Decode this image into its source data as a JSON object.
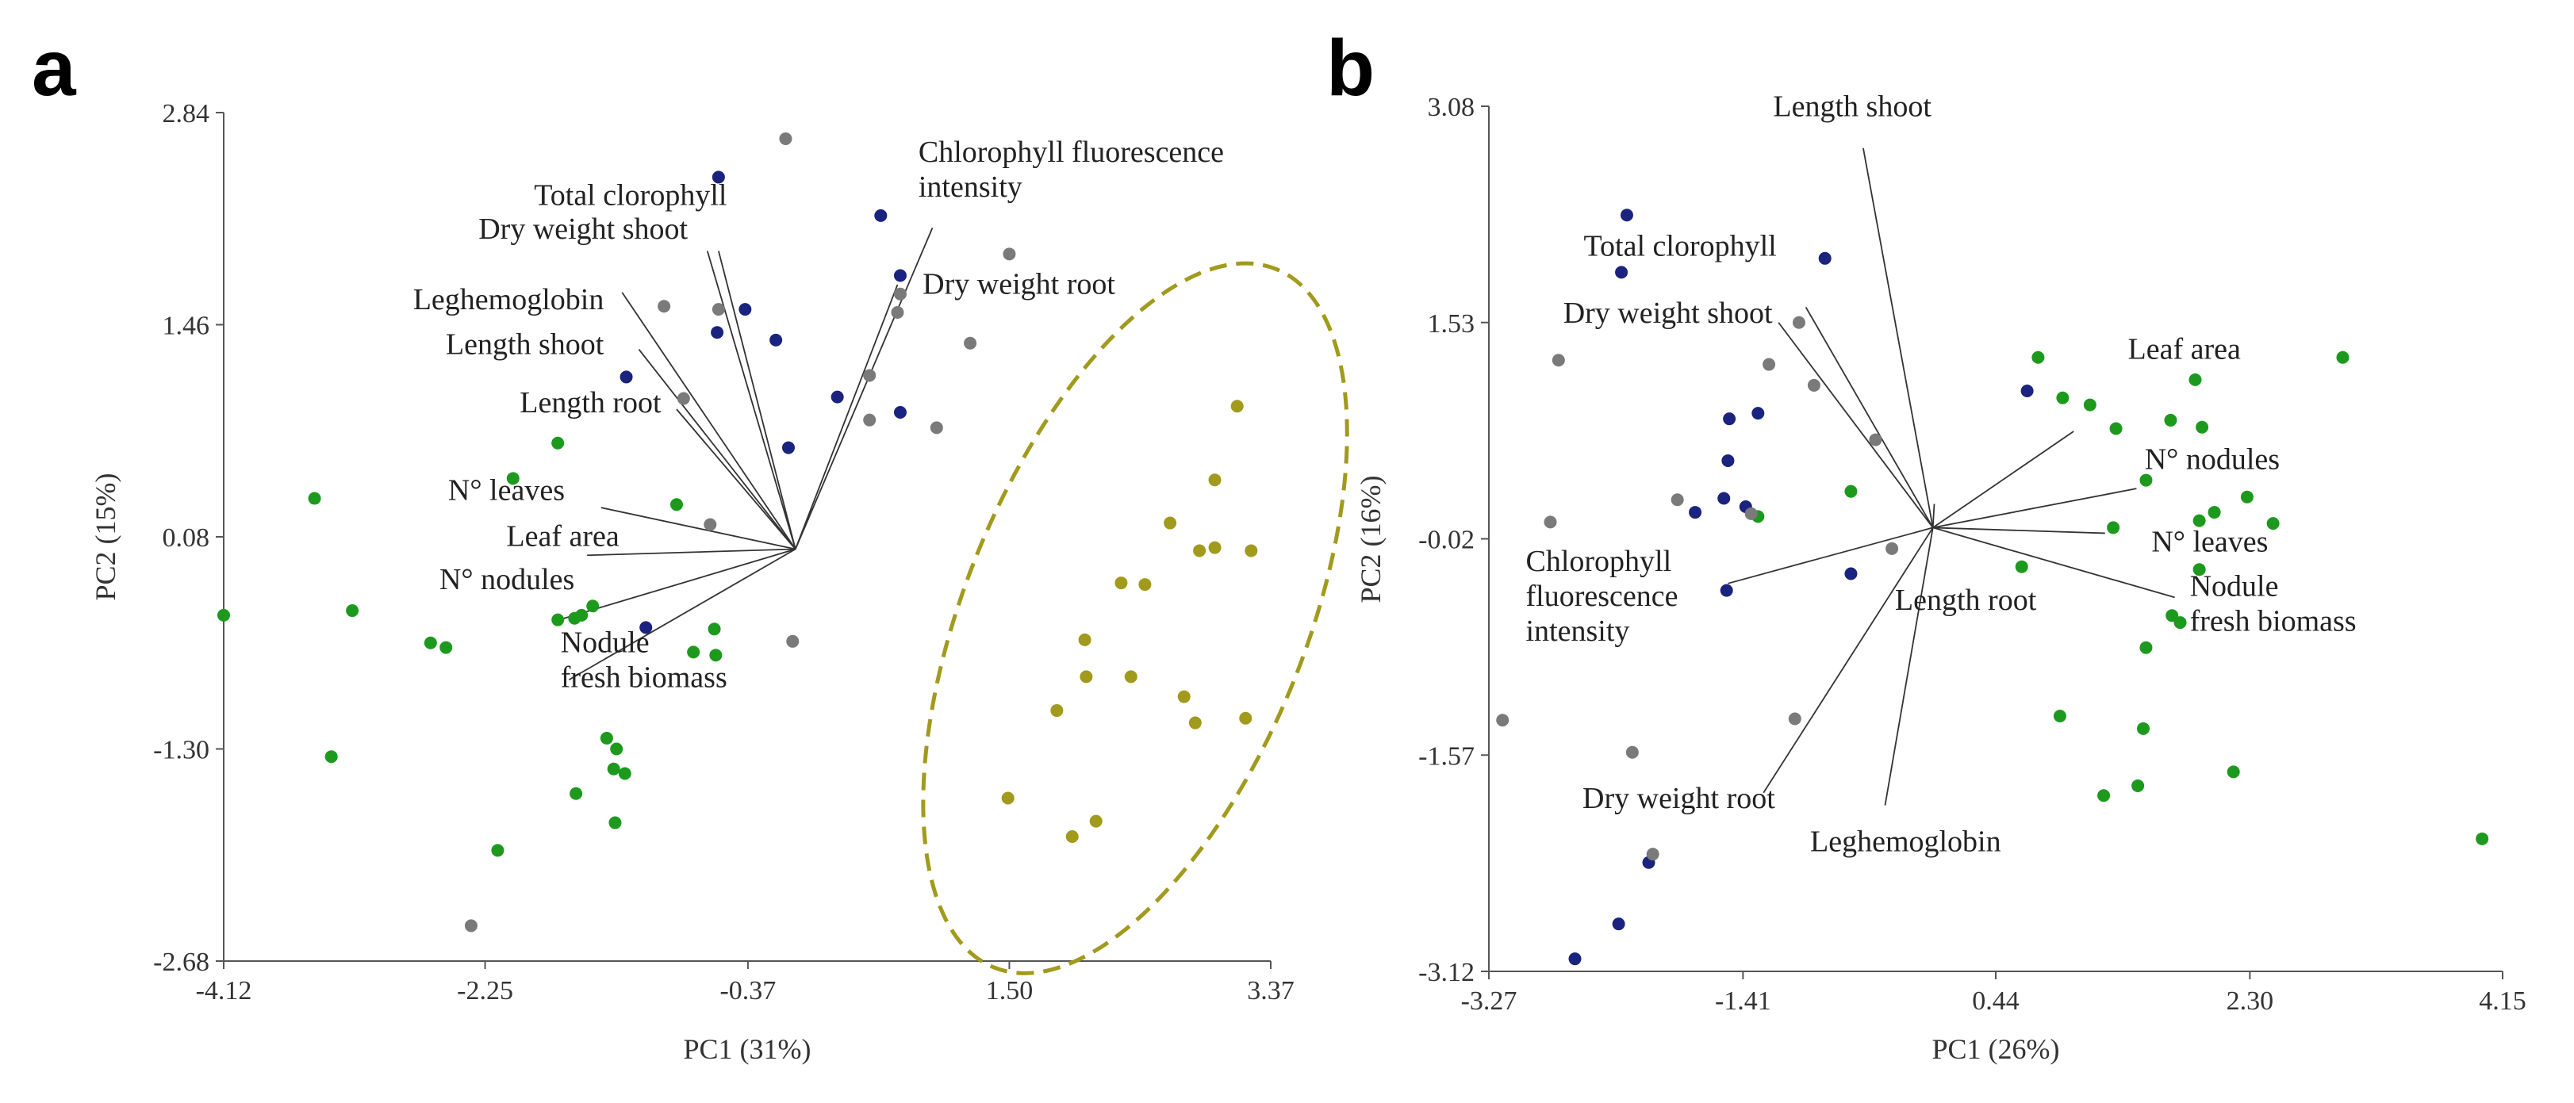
{
  "colors": {
    "green": "#1d9a1d",
    "navy": "#1a237e",
    "gray": "#7a7a7a",
    "olive": "#a19a1c",
    "axis": "#555555",
    "vector": "#333333"
  },
  "chart_data": [
    {
      "panel": "a",
      "type": "scatter",
      "subtype": "pca-biplot",
      "xlabel": "PC1 (31%)",
      "ylabel": "PC2 (15%)",
      "xlim": [
        -4.12,
        3.37
      ],
      "ylim": [
        -2.68,
        2.84
      ],
      "xticks": [
        {
          "value": -4.12,
          "label": "-4.12"
        },
        {
          "value": -2.25,
          "label": "-2.25"
        },
        {
          "value": -0.37,
          "label": "-0.37"
        },
        {
          "value": 1.5,
          "label": "1.50"
        },
        {
          "value": 3.37,
          "label": "3.37"
        }
      ],
      "yticks": [
        {
          "value": 2.84,
          "label": "2.84"
        },
        {
          "value": 1.46,
          "label": "1.46"
        },
        {
          "value": 0.08,
          "label": "0.08"
        },
        {
          "value": -1.3,
          "label": "-1.30"
        },
        {
          "value": -2.68,
          "label": "-2.68"
        }
      ],
      "origin": [
        -0.03,
        0.0
      ],
      "loadings": [
        {
          "label": "Chlorophyll fluorescence\nintensity",
          "end": [
            0.95,
            2.09
          ],
          "label_at": [
            0.85,
            2.52
          ],
          "anchor": "start"
        },
        {
          "label": "Dry weight root",
          "end": [
            0.7,
            1.72
          ],
          "label_at": [
            0.88,
            1.66
          ],
          "anchor": "start"
        },
        {
          "label": "Total clorophyll",
          "end": [
            -0.58,
            1.94
          ],
          "label_at": [
            -0.52,
            2.24
          ],
          "anchor": "end"
        },
        {
          "label": "Dry weight shoot",
          "end": [
            -0.66,
            1.94
          ],
          "label_at": [
            -0.8,
            2.02
          ],
          "anchor": "end"
        },
        {
          "label": "Leghemoglobin",
          "end": [
            -1.27,
            1.67
          ],
          "label_at": [
            -1.4,
            1.56
          ],
          "anchor": "end"
        },
        {
          "label": "Length shoot",
          "end": [
            -1.15,
            1.3
          ],
          "label_at": [
            -1.4,
            1.27
          ],
          "anchor": "end"
        },
        {
          "label": "Length root",
          "end": [
            -0.88,
            0.91
          ],
          "label_at": [
            -0.99,
            0.89
          ],
          "anchor": "end"
        },
        {
          "label": "N° leaves",
          "end": [
            -1.42,
            0.27
          ],
          "label_at": [
            -1.68,
            0.32
          ],
          "anchor": "end"
        },
        {
          "label": "Leaf area",
          "end": [
            -1.52,
            -0.04
          ],
          "label_at": [
            -1.29,
            0.02
          ],
          "anchor": "end"
        },
        {
          "label": "N° nodules",
          "end": [
            -1.72,
            -0.46
          ],
          "label_at": [
            -1.61,
            -0.26
          ],
          "anchor": "end"
        },
        {
          "label": "Nodule\nfresh biomass",
          "end": [
            -1.65,
            -0.85
          ],
          "label_at": [
            -1.71,
            -0.67
          ],
          "anchor": "start"
        }
      ],
      "series": [
        {
          "name": "green",
          "color": "green",
          "points": [
            [
              -4.12,
              -0.43
            ],
            [
              -3.47,
              0.33
            ],
            [
              -3.2,
              -0.4
            ],
            [
              -3.35,
              -1.35
            ],
            [
              -2.64,
              -0.61
            ],
            [
              -2.53,
              -0.64
            ],
            [
              -2.05,
              0.46
            ],
            [
              -1.73,
              -0.46
            ],
            [
              -1.61,
              -0.45
            ],
            [
              -1.56,
              -0.43
            ],
            [
              -1.73,
              0.69
            ],
            [
              -1.48,
              -0.37
            ],
            [
              -1.38,
              -1.23
            ],
            [
              -1.31,
              -1.3
            ],
            [
              -1.33,
              -1.43
            ],
            [
              -1.25,
              -1.46
            ],
            [
              -1.6,
              -1.59
            ],
            [
              -1.32,
              -1.78
            ],
            [
              -2.16,
              -1.96
            ],
            [
              -0.88,
              0.29
            ],
            [
              -0.76,
              -0.67
            ],
            [
              -0.6,
              -0.69
            ],
            [
              -0.61,
              -0.52
            ]
          ]
        },
        {
          "name": "navy",
          "color": "navy",
          "points": [
            [
              -0.58,
              2.42
            ],
            [
              0.58,
              2.17
            ],
            [
              0.72,
              1.78
            ],
            [
              -0.39,
              1.56
            ],
            [
              -0.59,
              1.41
            ],
            [
              -0.17,
              1.36
            ],
            [
              -1.24,
              1.12
            ],
            [
              0.27,
              0.99
            ],
            [
              0.72,
              0.89
            ],
            [
              -0.08,
              0.66
            ],
            [
              -1.1,
              -0.51
            ]
          ]
        },
        {
          "name": "gray",
          "color": "gray",
          "points": [
            [
              -0.1,
              2.67
            ],
            [
              1.5,
              1.92
            ],
            [
              0.72,
              1.66
            ],
            [
              0.7,
              1.54
            ],
            [
              -0.97,
              1.58
            ],
            [
              -0.58,
              1.56
            ],
            [
              1.22,
              1.34
            ],
            [
              0.5,
              1.13
            ],
            [
              -0.83,
              0.98
            ],
            [
              0.5,
              0.84
            ],
            [
              0.98,
              0.79
            ],
            [
              -0.64,
              0.16
            ],
            [
              -0.05,
              -0.6
            ],
            [
              -2.35,
              -2.45
            ]
          ]
        },
        {
          "name": "olive",
          "color": "olive",
          "points": [
            [
              3.13,
              0.93
            ],
            [
              2.97,
              0.45
            ],
            [
              2.65,
              0.17
            ],
            [
              2.97,
              0.01
            ],
            [
              2.86,
              -0.01
            ],
            [
              3.23,
              -0.01
            ],
            [
              2.3,
              -0.22
            ],
            [
              2.47,
              -0.23
            ],
            [
              2.04,
              -0.59
            ],
            [
              2.05,
              -0.83
            ],
            [
              2.37,
              -0.83
            ],
            [
              2.75,
              -0.96
            ],
            [
              1.84,
              -1.05
            ],
            [
              2.83,
              -1.13
            ],
            [
              3.19,
              -1.1
            ],
            [
              1.49,
              -1.62
            ],
            [
              2.12,
              -1.77
            ],
            [
              1.95,
              -1.87
            ]
          ]
        }
      ],
      "ellipse": {
        "center": [
          2.4,
          -0.45
        ],
        "rx": 1.22,
        "ry": 2.45,
        "rotation_deg": 22,
        "color": "olive"
      }
    },
    {
      "panel": "b",
      "type": "scatter",
      "subtype": "pca-biplot",
      "xlabel": "PC1 (26%)",
      "ylabel": "PC2 (16%)",
      "xlim": [
        -3.27,
        4.15
      ],
      "ylim": [
        -3.12,
        3.08
      ],
      "xticks": [
        {
          "value": -3.27,
          "label": "-3.27"
        },
        {
          "value": -1.41,
          "label": "-1.41"
        },
        {
          "value": 0.44,
          "label": "0.44"
        },
        {
          "value": 2.3,
          "label": "2.30"
        },
        {
          "value": 4.15,
          "label": "4.15"
        }
      ],
      "yticks": [
        {
          "value": 3.08,
          "label": "3.08"
        },
        {
          "value": 1.53,
          "label": "1.53"
        },
        {
          "value": -0.02,
          "label": "-0.02"
        },
        {
          "value": -1.57,
          "label": "-1.57"
        },
        {
          "value": -3.12,
          "label": "-3.12"
        }
      ],
      "origin": [
        -0.02,
        0.06
      ],
      "loadings": [
        {
          "label": "Length shoot",
          "end": [
            -0.53,
            2.78
          ],
          "label_at": [
            -0.61,
            3.01
          ],
          "anchor": "middle"
        },
        {
          "label": "Total clorophyll",
          "end": [
            -0.95,
            1.64
          ],
          "label_at": [
            -1.87,
            2.01
          ],
          "anchor": "middle"
        },
        {
          "label": "Dry weight shoot",
          "end": [
            -1.15,
            1.53
          ],
          "label_at": [
            -1.96,
            1.53
          ],
          "anchor": "middle"
        },
        {
          "label": "Leaf area",
          "end": [
            1.01,
            0.75
          ],
          "label_at": [
            1.82,
            1.27
          ],
          "anchor": "middle"
        },
        {
          "label": "N° nodules",
          "end": [
            1.47,
            0.34
          ],
          "label_at": [
            1.53,
            0.48
          ],
          "anchor": "start"
        },
        {
          "label": "N° leaves",
          "end": [
            1.24,
            0.02
          ],
          "label_at": [
            1.58,
            -0.11
          ],
          "anchor": "start"
        },
        {
          "label": "Nodule\nfresh biomass",
          "end": [
            1.75,
            -0.44
          ],
          "label_at": [
            1.86,
            -0.43
          ],
          "anchor": "start"
        },
        {
          "label": "Chlorophyll\nfluorescence\nintensity",
          "end": [
            -1.52,
            -0.34
          ],
          "label_at": [
            -3.0,
            -0.25
          ],
          "anchor": "start"
        },
        {
          "label": "Length root",
          "end": [
            -0.01,
            0.23
          ],
          "label_at": [
            0.22,
            -0.53
          ],
          "anchor": "middle"
        },
        {
          "label": "Dry weight root",
          "end": [
            -1.26,
            -1.84
          ],
          "label_at": [
            -1.88,
            -1.95
          ],
          "anchor": "middle"
        },
        {
          "label": "Leghemoglobin",
          "end": [
            -0.37,
            -1.93
          ],
          "label_at": [
            -0.22,
            -2.26
          ],
          "anchor": "middle"
        }
      ],
      "series": [
        {
          "name": "green",
          "color": "green",
          "points": [
            [
              0.75,
              1.28
            ],
            [
              0.93,
              0.99
            ],
            [
              1.13,
              0.94
            ],
            [
              1.32,
              0.77
            ],
            [
              1.72,
              0.83
            ],
            [
              1.9,
              1.12
            ],
            [
              1.95,
              0.78
            ],
            [
              2.98,
              1.28
            ],
            [
              2.28,
              0.28
            ],
            [
              1.54,
              0.4
            ],
            [
              1.3,
              0.06
            ],
            [
              1.93,
              0.11
            ],
            [
              2.04,
              0.17
            ],
            [
              2.47,
              0.09
            ],
            [
              0.63,
              -0.22
            ],
            [
              1.93,
              -0.24
            ],
            [
              1.79,
              -0.62
            ],
            [
              1.73,
              -0.57
            ],
            [
              1.54,
              -0.8
            ],
            [
              0.91,
              -1.29
            ],
            [
              1.52,
              -1.38
            ],
            [
              2.18,
              -1.69
            ],
            [
              1.48,
              -1.79
            ],
            [
              1.23,
              -1.86
            ],
            [
              4.0,
              -2.17
            ],
            [
              -0.62,
              0.32
            ],
            [
              -1.3,
              0.14
            ]
          ]
        },
        {
          "name": "navy",
          "color": "navy",
          "points": [
            [
              -2.26,
              2.3
            ],
            [
              -2.3,
              1.89
            ],
            [
              -0.81,
              1.99
            ],
            [
              -1.51,
              0.84
            ],
            [
              -1.3,
              0.88
            ],
            [
              -1.52,
              0.54
            ],
            [
              -1.55,
              0.27
            ],
            [
              -1.76,
              0.17
            ],
            [
              -1.39,
              0.21
            ],
            [
              -1.53,
              -0.39
            ],
            [
              -0.62,
              -0.27
            ],
            [
              0.67,
              1.04
            ],
            [
              -2.32,
              -2.78
            ],
            [
              -2.1,
              -2.34
            ],
            [
              -2.64,
              -3.03
            ]
          ]
        },
        {
          "name": "gray",
          "color": "gray",
          "points": [
            [
              -2.76,
              1.26
            ],
            [
              -1.0,
              1.53
            ],
            [
              -1.22,
              1.23
            ],
            [
              -0.89,
              1.08
            ],
            [
              -0.44,
              0.69
            ],
            [
              -1.89,
              0.26
            ],
            [
              -1.35,
              0.16
            ],
            [
              -2.82,
              0.1
            ],
            [
              -0.32,
              -0.09
            ],
            [
              -3.17,
              -1.32
            ],
            [
              -2.22,
              -1.55
            ],
            [
              -1.03,
              -1.31
            ],
            [
              -2.07,
              -2.28
            ]
          ]
        }
      ]
    }
  ]
}
